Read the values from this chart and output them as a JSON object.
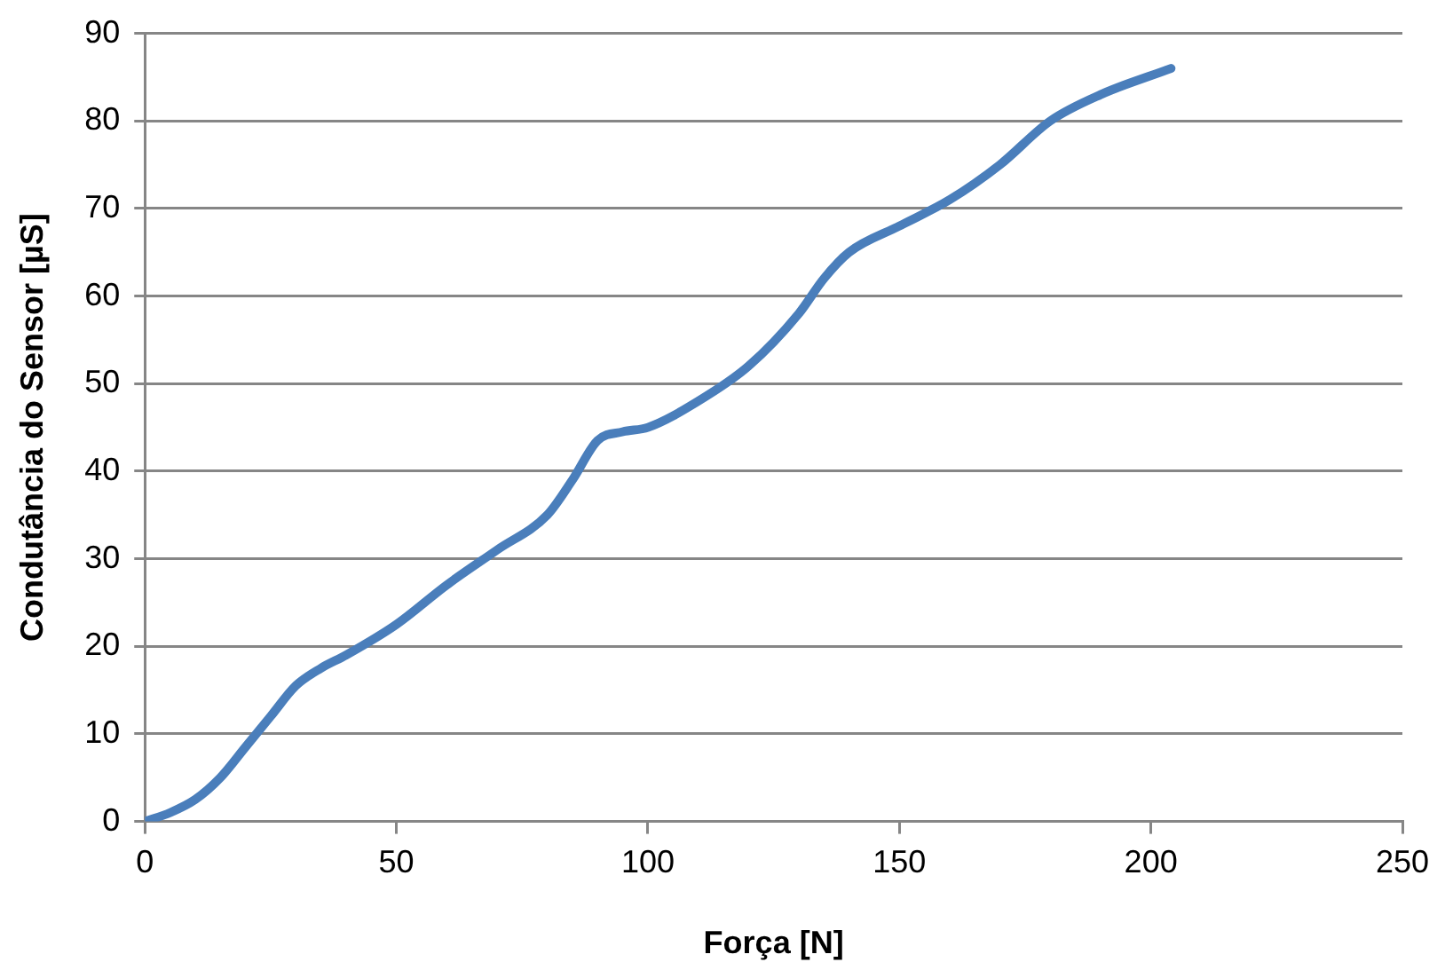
{
  "chart_data": {
    "type": "line",
    "xlabel": "Força [N]",
    "ylabel": "Condutância do Sensor [µS]",
    "series": [
      {
        "color": "#4a7ebb",
        "x": [
          0,
          5,
          10,
          15,
          20,
          25,
          30,
          35,
          40,
          50,
          60,
          70,
          80,
          85,
          90,
          95,
          100,
          110,
          120,
          130,
          135,
          140,
          150,
          160,
          170,
          180,
          190,
          204
        ],
        "values": [
          0,
          1,
          2.5,
          5,
          8.5,
          12,
          15.5,
          17.5,
          19,
          22.5,
          27,
          31,
          35,
          39,
          43.5,
          44.5,
          45,
          48,
          52,
          58,
          62,
          65,
          68,
          71,
          75,
          80,
          83,
          86
        ]
      }
    ],
    "xlim": [
      0,
      250
    ],
    "xticks": [
      0,
      50,
      100,
      150,
      200,
      250
    ],
    "ylim": [
      0,
      90
    ],
    "yticks": [
      0,
      10,
      20,
      30,
      40,
      50,
      60,
      70,
      80,
      90
    ],
    "grid": "y",
    "legend": false,
    "marker": "none",
    "line_style": "solid"
  }
}
